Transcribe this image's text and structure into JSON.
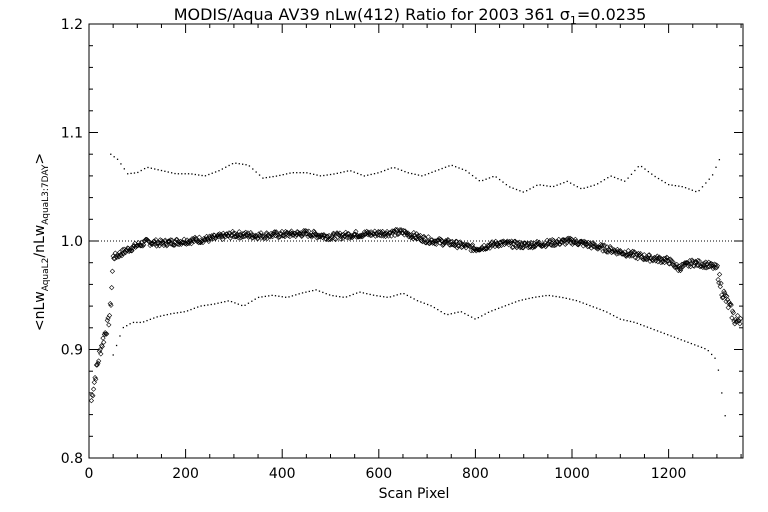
{
  "chart_data": {
    "type": "scatter",
    "title": {
      "main": "MODIS/Aqua AV39 nLw(412) Ratio for 2003 361 ",
      "sigma_symbol": "σ",
      "sigma_sub": "1",
      "sigma_value": "=0.0235"
    },
    "xlabel": "Scan Pixel",
    "ylabel": {
      "prefix": "<nLw",
      "sub1": "AquaL2",
      "middle": "/nLw",
      "sub2": "AquaL3:7DAY",
      "suffix": ">"
    },
    "xlim": [
      0,
      1354
    ],
    "ylim": [
      0.8,
      1.2
    ],
    "x_ticks": [
      0,
      200,
      400,
      600,
      800,
      1000,
      1200
    ],
    "x_tick_labels": [
      "0",
      "200",
      "400",
      "600",
      "800",
      "1000",
      "1200"
    ],
    "y_ticks": [
      0.8,
      0.9,
      1.0,
      1.1,
      1.2
    ],
    "y_tick_labels": [
      "0.8",
      "0.9",
      "1.0",
      "1.1",
      "1.2"
    ],
    "reference_line": 1.0,
    "grid": false,
    "series": [
      {
        "role": "mean",
        "marker": "diamond",
        "x": [
          5,
          10,
          15,
          20,
          25,
          30,
          35,
          40,
          45,
          50,
          60,
          80,
          100,
          120,
          150,
          200,
          250,
          300,
          350,
          400,
          450,
          500,
          550,
          600,
          650,
          700,
          750,
          800,
          850,
          900,
          950,
          1000,
          1050,
          1100,
          1150,
          1200,
          1220,
          1250,
          1280,
          1300,
          1310,
          1320,
          1330,
          1340,
          1350
        ],
        "y": [
          0.853,
          0.868,
          0.88,
          0.892,
          0.902,
          0.91,
          0.918,
          0.924,
          0.94,
          0.985,
          0.987,
          0.992,
          0.996,
          0.999,
          0.998,
          1.0,
          1.002,
          1.006,
          1.005,
          1.006,
          1.007,
          1.004,
          1.006,
          1.007,
          1.008,
          1.001,
          0.998,
          0.993,
          0.998,
          0.996,
          0.998,
          1.0,
          0.995,
          0.99,
          0.985,
          0.982,
          0.975,
          0.98,
          0.978,
          0.975,
          0.955,
          0.945,
          0.935,
          0.925,
          0.93
        ]
      },
      {
        "role": "upper-sigma",
        "marker": "dot",
        "x": [
          45,
          60,
          80,
          100,
          120,
          150,
          180,
          210,
          240,
          270,
          300,
          330,
          360,
          390,
          420,
          450,
          480,
          510,
          540,
          570,
          600,
          630,
          660,
          690,
          720,
          750,
          780,
          810,
          840,
          870,
          900,
          930,
          960,
          990,
          1020,
          1050,
          1080,
          1110,
          1140,
          1170,
          1200,
          1230,
          1260,
          1290,
          1310
        ],
        "y": [
          1.08,
          1.075,
          1.062,
          1.063,
          1.068,
          1.065,
          1.062,
          1.062,
          1.06,
          1.065,
          1.072,
          1.07,
          1.058,
          1.06,
          1.063,
          1.063,
          1.06,
          1.062,
          1.065,
          1.06,
          1.063,
          1.068,
          1.063,
          1.06,
          1.065,
          1.07,
          1.065,
          1.055,
          1.06,
          1.05,
          1.045,
          1.052,
          1.05,
          1.055,
          1.048,
          1.052,
          1.06,
          1.055,
          1.07,
          1.06,
          1.052,
          1.05,
          1.045,
          1.06,
          1.08
        ]
      },
      {
        "role": "lower-sigma",
        "marker": "dot",
        "x": [
          50,
          70,
          90,
          110,
          140,
          170,
          200,
          230,
          260,
          290,
          320,
          350,
          380,
          410,
          440,
          470,
          500,
          530,
          560,
          590,
          620,
          650,
          680,
          710,
          740,
          770,
          800,
          830,
          860,
          890,
          920,
          950,
          980,
          1010,
          1040,
          1070,
          1100,
          1130,
          1160,
          1190,
          1220,
          1250,
          1280,
          1300,
          1320
        ],
        "y": [
          0.895,
          0.92,
          0.925,
          0.925,
          0.93,
          0.933,
          0.935,
          0.94,
          0.942,
          0.945,
          0.94,
          0.948,
          0.95,
          0.948,
          0.952,
          0.955,
          0.95,
          0.948,
          0.953,
          0.95,
          0.948,
          0.952,
          0.945,
          0.94,
          0.932,
          0.935,
          0.928,
          0.935,
          0.94,
          0.945,
          0.948,
          0.95,
          0.948,
          0.945,
          0.94,
          0.935,
          0.928,
          0.925,
          0.92,
          0.915,
          0.91,
          0.905,
          0.9,
          0.89,
          0.83
        ]
      }
    ]
  }
}
